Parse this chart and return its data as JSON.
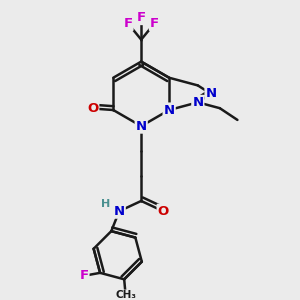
{
  "bg_color": "#ebebeb",
  "bond_color": "#1a1a1a",
  "bond_width": 1.8,
  "atom_colors": {
    "N": "#0000cc",
    "O": "#cc0000",
    "F": "#cc00cc",
    "H": "#4a9090",
    "C": "#1a1a1a"
  },
  "font_size": 9.5
}
